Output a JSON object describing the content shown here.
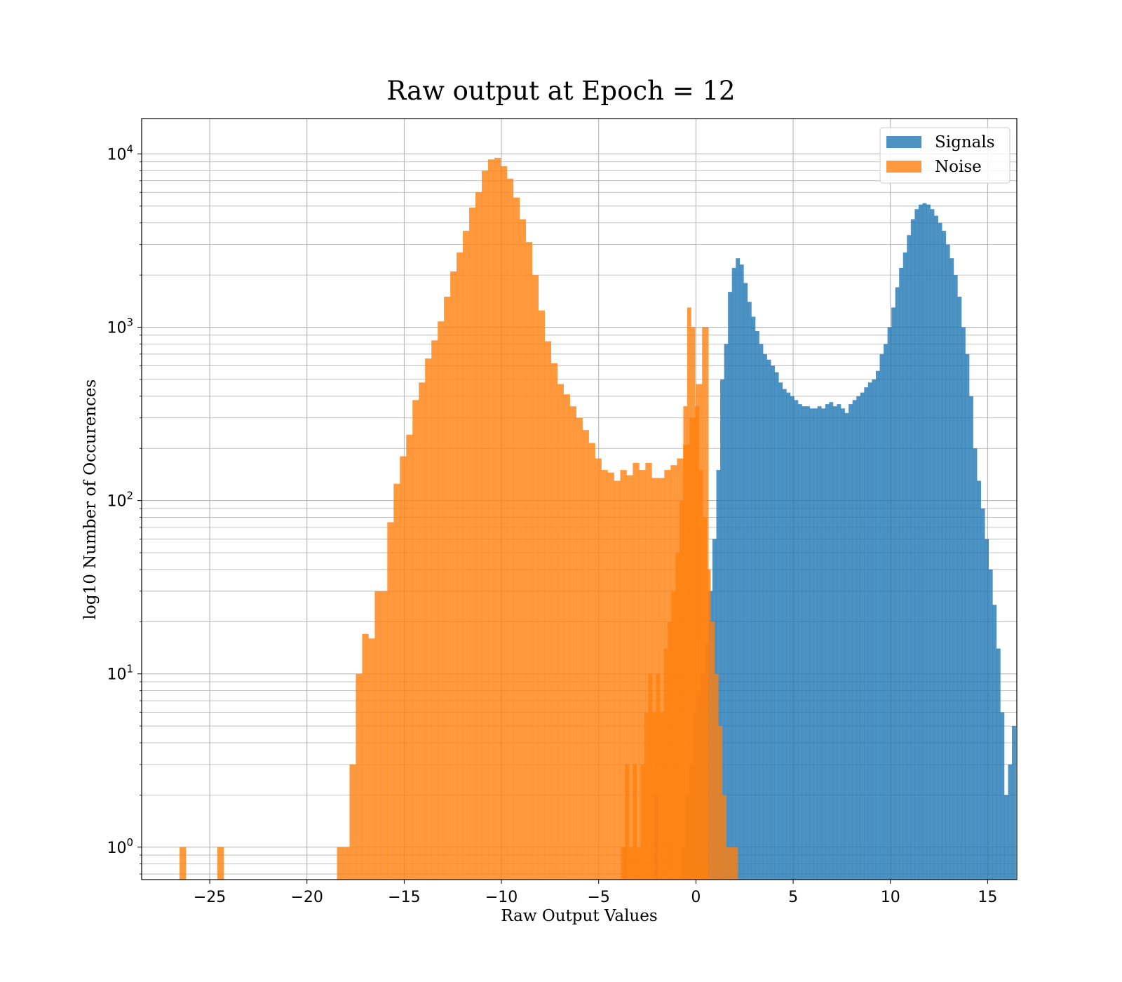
{
  "chart_data": {
    "type": "bar",
    "title": "Raw output at Epoch = 12",
    "xlabel": "Raw Output Values",
    "ylabel": "log10 Number of Occurences",
    "xlim": [
      -28.5,
      16.5
    ],
    "ylim": [
      0.65,
      16000
    ],
    "yscale": "log",
    "grid": true,
    "legend_position": "top-right",
    "x_ticks": [
      -25,
      -20,
      -15,
      -10,
      -5,
      0,
      5,
      10,
      15
    ],
    "x_tick_labels": [
      "−25",
      "−20",
      "−15",
      "−10",
      "−5",
      "0",
      "5",
      "10",
      "15"
    ],
    "y_ticks": [
      1,
      10,
      100,
      1000,
      10000
    ],
    "y_tick_labels": [
      {
        "base": "10",
        "exp": "0"
      },
      {
        "base": "10",
        "exp": "1"
      },
      {
        "base": "10",
        "exp": "2"
      },
      {
        "base": "10",
        "exp": "3"
      },
      {
        "base": "10",
        "exp": "4"
      }
    ],
    "series": [
      {
        "name": "Signals",
        "color": "#1f77b4",
        "bin_start": -3.75,
        "bin_width": 0.2,
        "values": [
          1,
          0,
          0,
          0,
          0,
          0,
          0,
          0,
          2,
          0,
          0,
          0,
          0,
          0,
          0,
          1,
          2,
          3,
          6,
          8,
          10,
          15,
          30,
          60,
          150,
          500,
          800,
          1600,
          2200,
          2500,
          2300,
          1800,
          1400,
          1150,
          950,
          800,
          700,
          650,
          600,
          550,
          480,
          440,
          420,
          400,
          380,
          360,
          350,
          350,
          340,
          340,
          350,
          340,
          360,
          370,
          350,
          360,
          340,
          320,
          360,
          380,
          400,
          420,
          450,
          480,
          500,
          560,
          700,
          800,
          1000,
          1300,
          1700,
          2200,
          2700,
          3400,
          4200,
          4800,
          5100,
          5200,
          5100,
          4800,
          4400,
          4000,
          3600,
          3000,
          2500,
          2000,
          1500,
          1000,
          700,
          400,
          200,
          130,
          90,
          60,
          40,
          25,
          14,
          6,
          2,
          3,
          5
        ]
      },
      {
        "name": "Noise",
        "color": "#ff7f0e",
        "bin_start": -26.55,
        "bin_width": 0.3237,
        "values": [
          1,
          0,
          0,
          0,
          0,
          0,
          1,
          0,
          0,
          0,
          0,
          0,
          0,
          0,
          0,
          0,
          0,
          0,
          0,
          0,
          0,
          0,
          0,
          0,
          0,
          1,
          1,
          3,
          10,
          17,
          16,
          30,
          30,
          75,
          125,
          180,
          240,
          380,
          480,
          660,
          840,
          1080,
          1500,
          2100,
          2700,
          3600,
          4900,
          6000,
          8000,
          9300,
          9500,
          8500,
          7200,
          5600,
          4200,
          3100,
          2000,
          1250,
          830,
          620,
          470,
          410,
          350,
          300,
          255,
          215,
          175,
          150,
          145,
          130,
          150,
          140,
          165,
          150,
          165,
          135,
          135,
          150,
          160,
          175,
          210,
          300,
          470,
          1000
        ],
        "overlap_bin_start": -3.85,
        "overlap_values": [
          1,
          3,
          1,
          3,
          1,
          3,
          6,
          10,
          6,
          10,
          6,
          14,
          20,
          30,
          50,
          100,
          350,
          1300,
          1000,
          350,
          150,
          80,
          40,
          20,
          10,
          5,
          2,
          1,
          1,
          1
        ]
      }
    ]
  },
  "legend": {
    "items": [
      {
        "label": "Signals",
        "color": "#1f77b4"
      },
      {
        "label": "Noise",
        "color": "#ff7f0e"
      }
    ]
  }
}
